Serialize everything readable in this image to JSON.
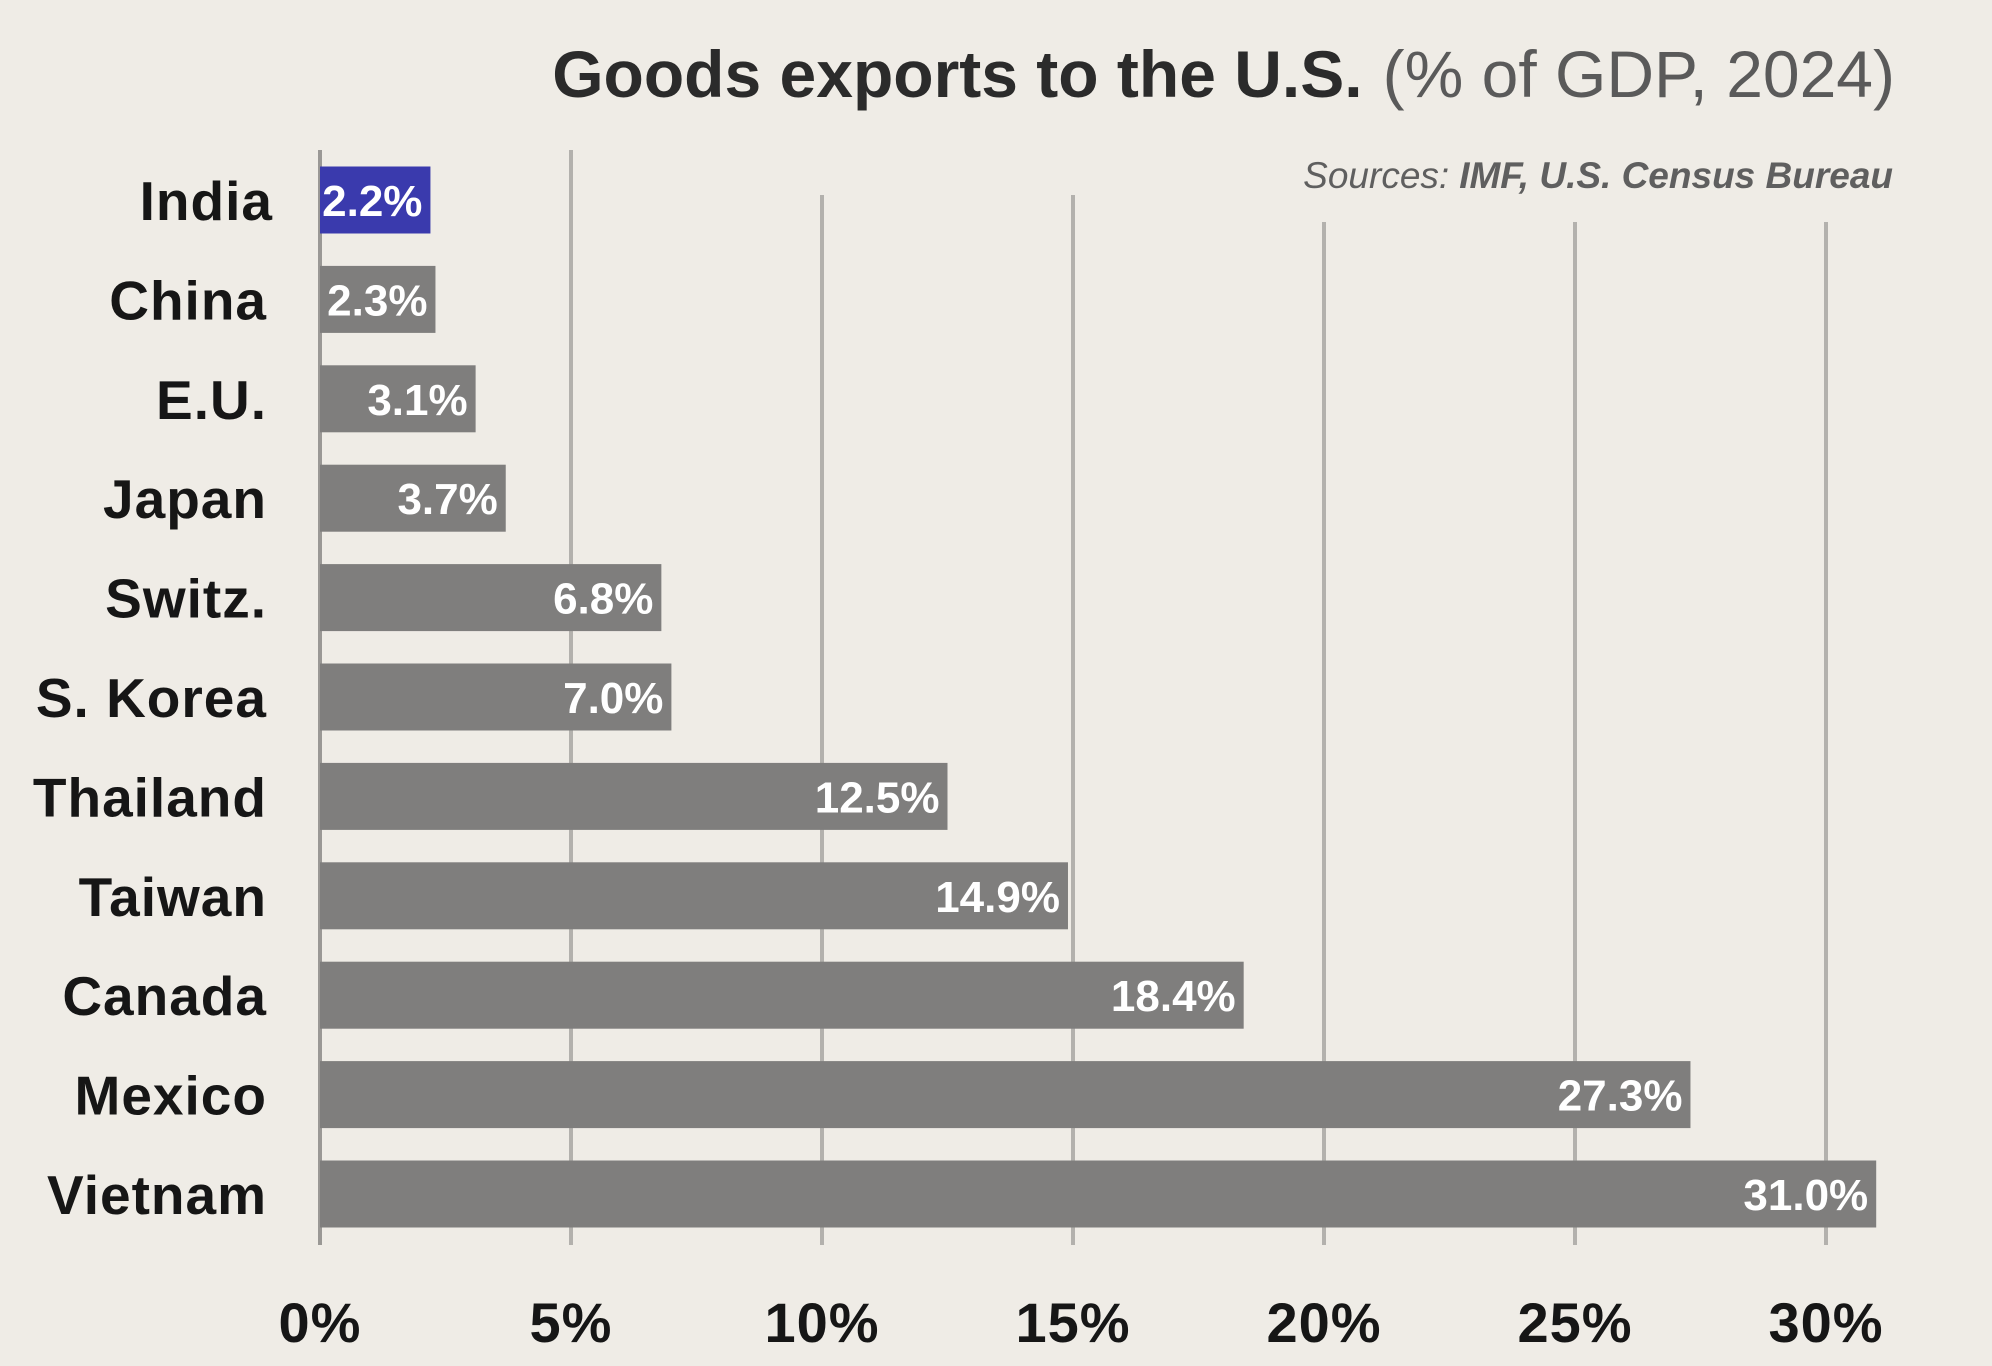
{
  "title_bold": "Goods exports to the U.S.",
  "title_light": "(% of GDP, 2024)",
  "source_prefix": "Sources:",
  "source_names": "IMF, U.S. Census Bureau",
  "colors": {
    "background": "#efece6",
    "bar_default": "#7f7e7d",
    "bar_highlight": "#3a3aad",
    "label_highlight": "#0c0c99",
    "gridline": "#b3b1ad"
  },
  "chart_data": {
    "type": "bar",
    "orientation": "horizontal",
    "title": "Goods exports to the U.S. (% of GDP, 2024)",
    "categories": [
      "India",
      "China",
      "E.U.",
      "Japan",
      "Switz.",
      "S. Korea",
      "Thailand",
      "Taiwan",
      "Canada",
      "Mexico",
      "Vietnam"
    ],
    "values": [
      2.2,
      2.3,
      3.1,
      3.7,
      6.8,
      7.0,
      12.5,
      14.9,
      18.4,
      27.3,
      31.0
    ],
    "value_labels": [
      "2.2%",
      "2.3%",
      "3.1%",
      "3.7%",
      "6.8%",
      "7.0%",
      "12.5%",
      "14.9%",
      "18.4%",
      "27.3%",
      "31.0%"
    ],
    "highlight": "India",
    "xlim": [
      0,
      30
    ],
    "xticks": [
      0,
      5,
      10,
      15,
      20,
      25,
      30
    ],
    "xtick_labels": [
      "0%",
      "5%",
      "10%",
      "15%",
      "20%",
      "25%",
      "30%"
    ],
    "grid": true,
    "legend": "none"
  }
}
